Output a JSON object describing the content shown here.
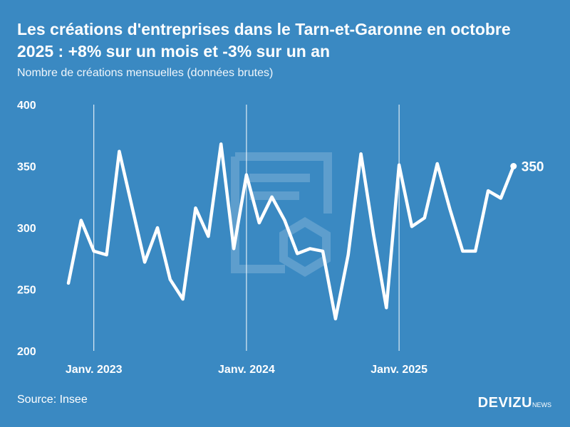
{
  "title": "Les créations d'entreprises dans le Tarn-et-Garonne en octobre 2025 : +8% sur un mois et -3% sur un an",
  "subtitle": "Nombre de créations mensuelles (données brutes)",
  "source": "Source: Insee",
  "brand": {
    "name": "DEVIZU",
    "suffix": "NEWS"
  },
  "colors": {
    "background": "#3a89c2",
    "line": "#ffffff"
  },
  "chart_data": {
    "type": "line",
    "title": "Les créations d'entreprises dans le Tarn-et-Garonne en octobre 2025 : +8% sur un mois et -3% sur un an",
    "ylabel": "",
    "xlabel": "",
    "ylim": [
      200,
      400
    ],
    "yticks": [
      200,
      250,
      300,
      350,
      400
    ],
    "xticks": [
      {
        "month": "2023-01",
        "label": "Janv. 2023"
      },
      {
        "month": "2024-01",
        "label": "Janv. 2024"
      },
      {
        "month": "2025-01",
        "label": "Janv. 2025"
      }
    ],
    "grid": "vertical lines at January",
    "last_label": "350",
    "x": [
      "2022-11",
      "2022-12",
      "2023-01",
      "2023-02",
      "2023-03",
      "2023-04",
      "2023-05",
      "2023-06",
      "2023-07",
      "2023-08",
      "2023-09",
      "2023-10",
      "2023-11",
      "2023-12",
      "2024-01",
      "2024-02",
      "2024-03",
      "2024-04",
      "2024-05",
      "2024-06",
      "2024-07",
      "2024-08",
      "2024-09",
      "2024-10",
      "2024-11",
      "2024-12",
      "2025-01",
      "2025-02",
      "2025-03",
      "2025-04",
      "2025-05",
      "2025-06",
      "2025-07",
      "2025-08",
      "2025-09",
      "2025-10"
    ],
    "values": [
      255,
      306,
      281,
      278,
      362,
      317,
      272,
      300,
      258,
      242,
      316,
      293,
      368,
      283,
      343,
      304,
      325,
      306,
      279,
      283,
      281,
      226,
      278,
      360,
      294,
      235,
      351,
      301,
      308,
      352,
      315,
      281,
      281,
      330,
      324,
      350
    ]
  }
}
